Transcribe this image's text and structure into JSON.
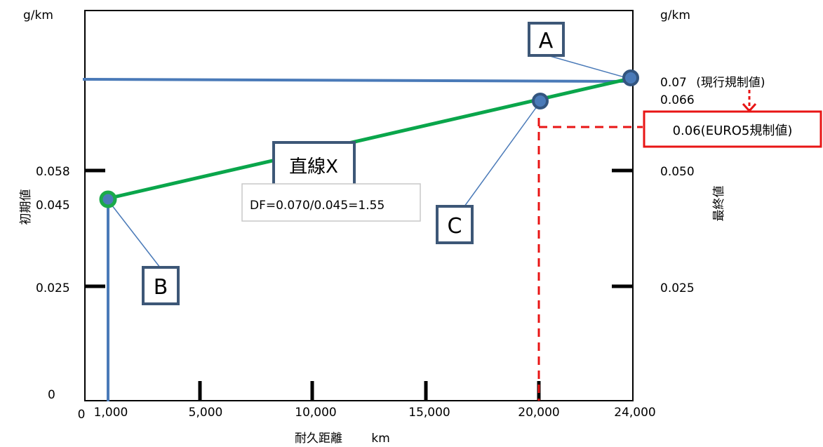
{
  "left_axis": {
    "unit": "g/km",
    "title": "初期値",
    "tick_labels": [
      {
        "label": "0.058",
        "value": 0.058
      },
      {
        "label": "0.045",
        "value": 0.045
      },
      {
        "label": "0.025",
        "value": 0.025
      },
      {
        "label": "0",
        "value": 0
      }
    ]
  },
  "right_axis": {
    "unit": "g/km",
    "title": "最終値",
    "tick_labels": [
      {
        "label": "0.07",
        "value": 0.07,
        "annotation": "(現行規制値)"
      },
      {
        "label": "0.066",
        "value": 0.066
      },
      {
        "label": "0.050",
        "value": 0.05
      },
      {
        "label": "0.025",
        "value": 0.025
      }
    ]
  },
  "x_axis": {
    "title": "耐久距離",
    "unit": "km",
    "tick_labels": [
      {
        "label": "0",
        "value": 0
      },
      {
        "label": "1,000",
        "value": 1000
      },
      {
        "label": "5,000",
        "value": 5000
      },
      {
        "label": "10,000",
        "value": 10000
      },
      {
        "label": "15,000",
        "value": 15000
      },
      {
        "label": "20,000",
        "value": 20000
      },
      {
        "label": "24,000",
        "value": 24000
      }
    ]
  },
  "points": [
    {
      "label": "A",
      "x": 24000,
      "y": 0.07
    },
    {
      "label": "B",
      "x": 1000,
      "y": 0.045
    },
    {
      "label": "C",
      "x": 20000,
      "y": 0.066
    }
  ],
  "line_x": {
    "label": "直線X",
    "from": {
      "x": 1000,
      "y": 0.045
    },
    "to": {
      "x": 24000,
      "y": 0.07
    },
    "color": "#0aa64b"
  },
  "reference_line": {
    "y": 0.07,
    "color": "#4a7ab8"
  },
  "df_note": "DF=0.070/0.045=1.55",
  "euro5": {
    "label": "0.06(EURO5規制値)",
    "color": "#e81515"
  },
  "colors": {
    "box_border": "#3d5777",
    "marker_fill": "#4a7ab8",
    "marker_edge": "#33557f",
    "b_edge": "#1aaa4a"
  }
}
